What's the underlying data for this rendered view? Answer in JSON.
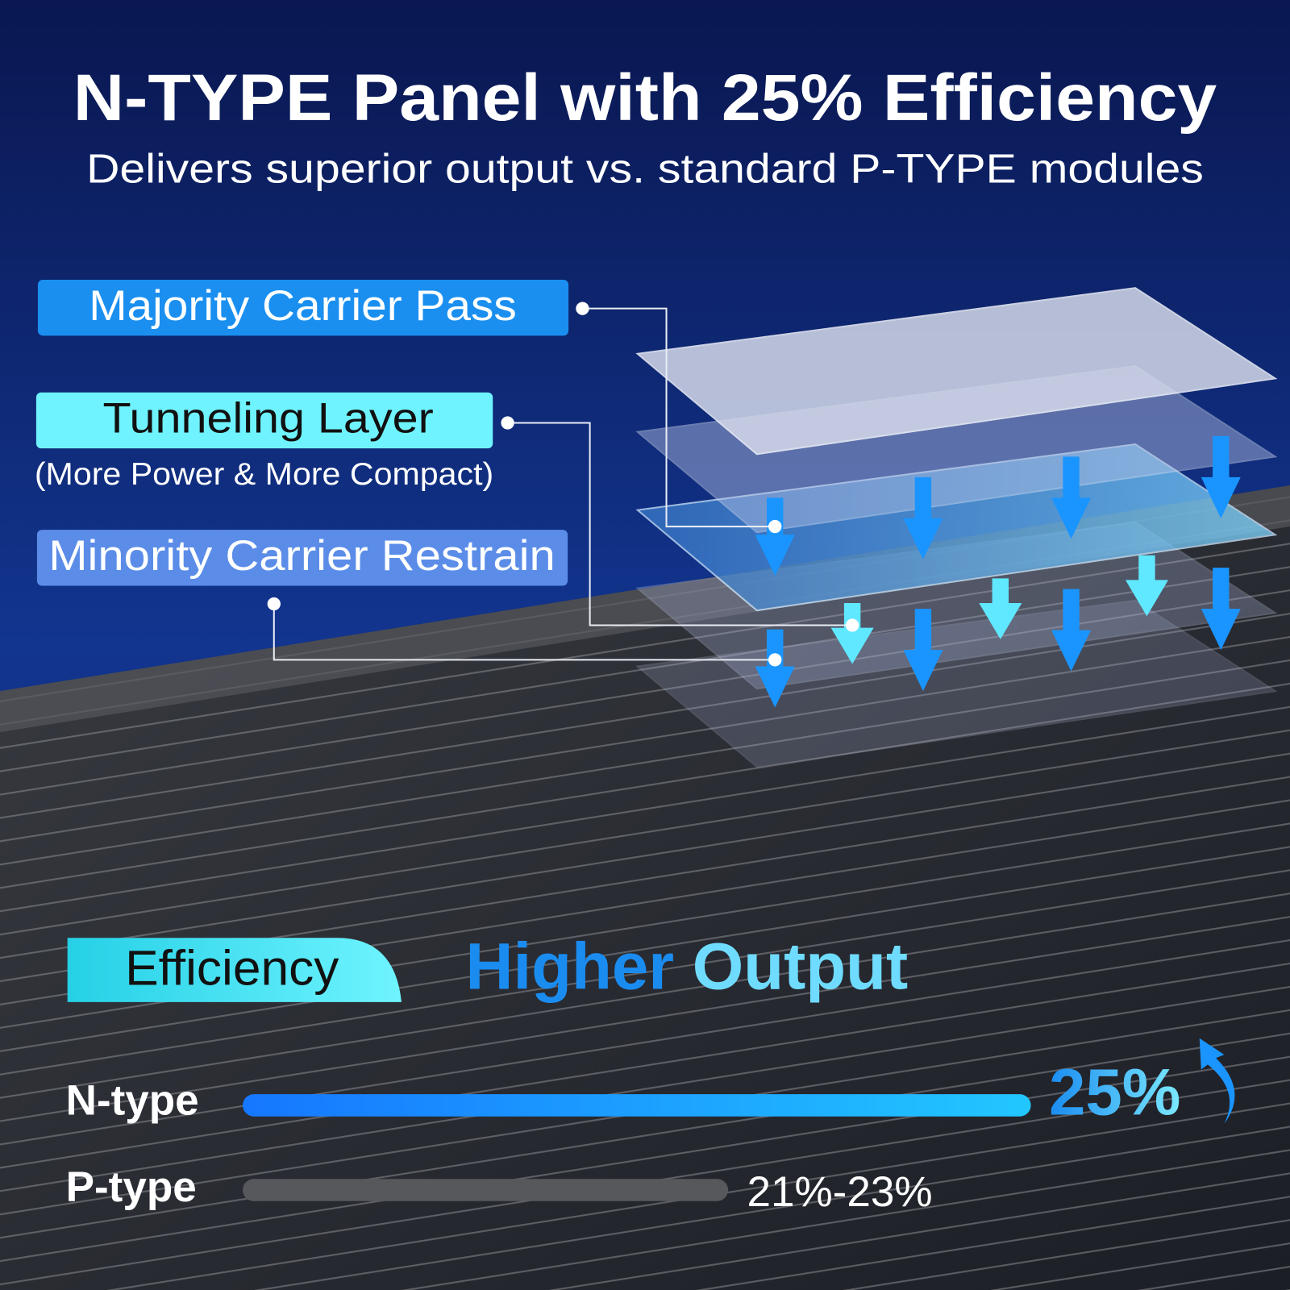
{
  "header": {
    "title": "N-TYPE Panel with 25% Efficiency",
    "subtitle": "Delivers superior output vs. standard P-TYPE modules"
  },
  "layers": [
    {
      "label": "Majority Carrier Pass"
    },
    {
      "label": "Tunneling Layer",
      "note": "(More Power & More Compact)"
    },
    {
      "label": "Minority Carrier Restrain"
    }
  ],
  "comparison": {
    "tag": "Efficiency",
    "headline": [
      "Higher",
      "Output"
    ],
    "rows": [
      {
        "label": "N-type",
        "value": "25%"
      },
      {
        "label": "P-type",
        "value": "21%-23%"
      }
    ]
  }
}
